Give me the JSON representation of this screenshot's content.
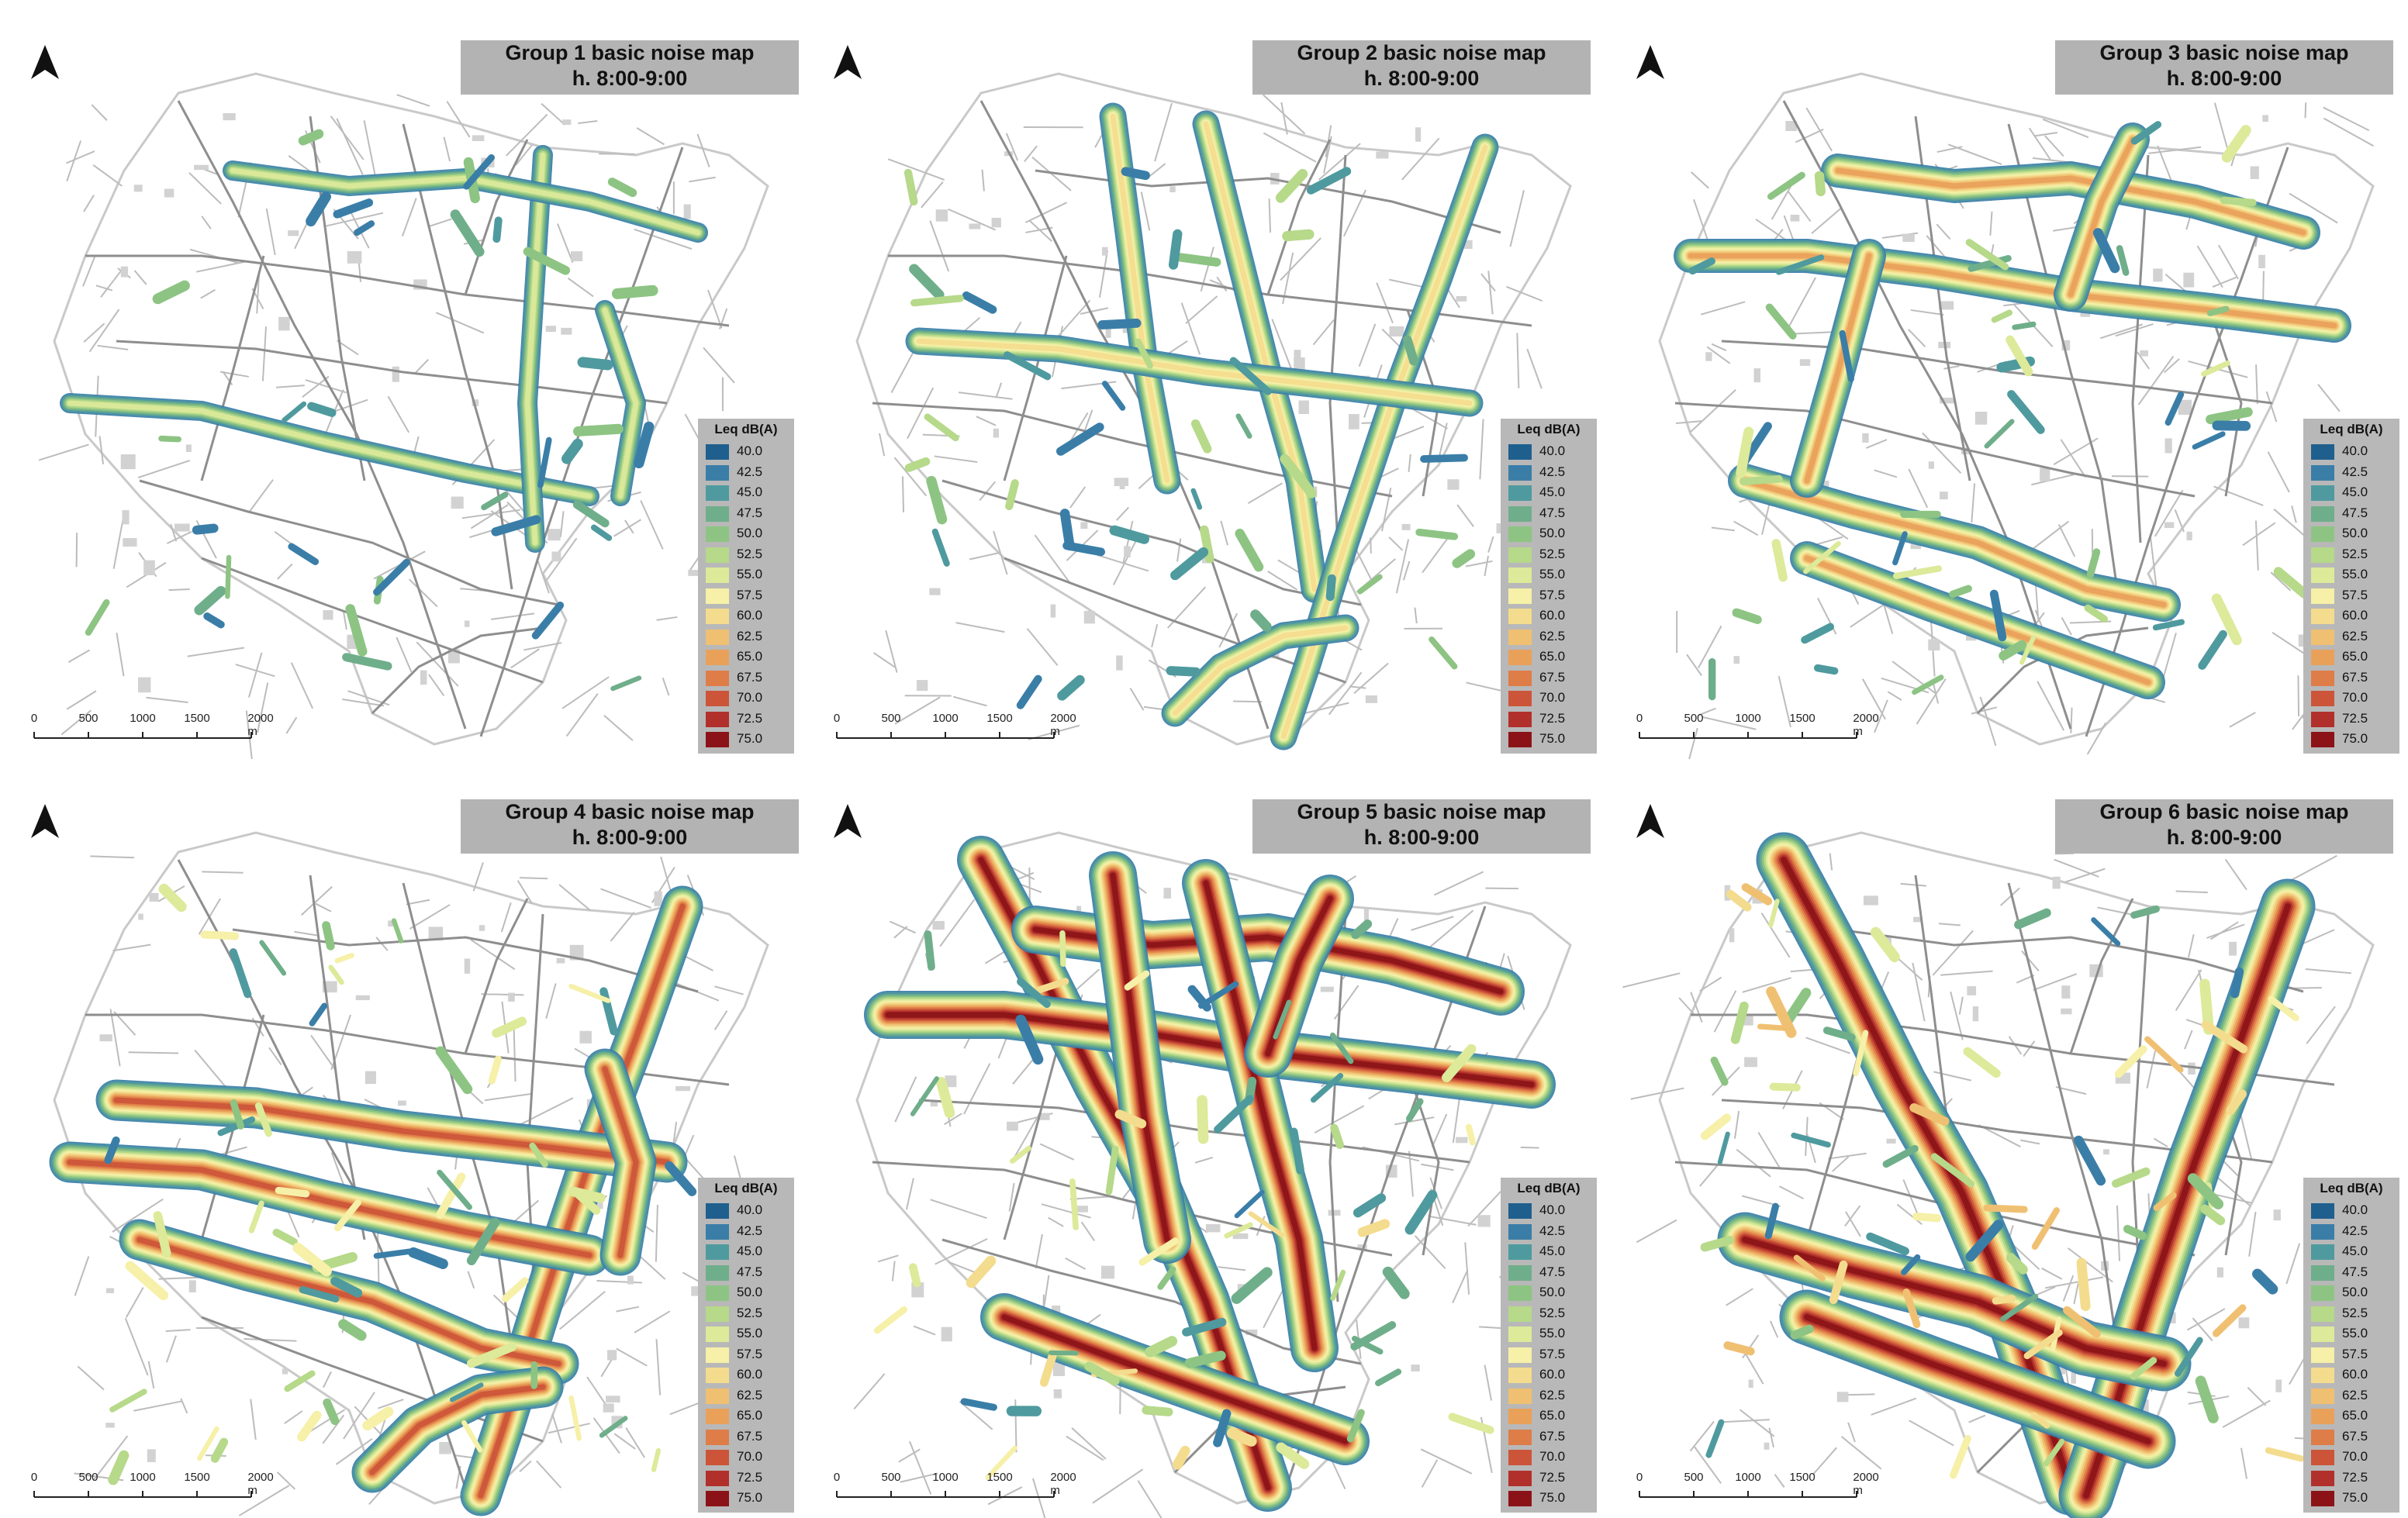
{
  "panels": [
    {
      "title": "Group 1 basic noise map",
      "subtitle": "h. 8:00-9:00",
      "intensity": 1
    },
    {
      "title": "Group 2 basic noise map",
      "subtitle": "h. 8:00-9:00",
      "intensity": 2
    },
    {
      "title": "Group 3 basic noise map",
      "subtitle": "h. 8:00-9:00",
      "intensity": 3
    },
    {
      "title": "Group 4 basic noise map",
      "subtitle": "h. 8:00-9:00",
      "intensity": 4
    },
    {
      "title": "Group 5 basic noise map",
      "subtitle": "h. 8:00-9:00",
      "intensity": 5
    },
    {
      "title": "Group 6 basic noise map",
      "subtitle": "h. 8:00-9:00",
      "intensity": 6
    }
  ],
  "legend": {
    "title": "Leq dB(A)",
    "levels": [
      "40.0",
      "42.5",
      "45.0",
      "47.5",
      "50.0",
      "52.5",
      "55.0",
      "57.5",
      "60.0",
      "62.5",
      "65.0",
      "67.5",
      "70.0",
      "72.5",
      "75.0"
    ],
    "colors": [
      "#1f5f8e",
      "#3a7ea8",
      "#4f9a9e",
      "#6fae8a",
      "#8dc483",
      "#b6d98a",
      "#dcea9a",
      "#f6f0a8",
      "#f4dc8e",
      "#f0c072",
      "#e9a15a",
      "#de7d48",
      "#cc5539",
      "#b1302b",
      "#8b1317"
    ]
  },
  "scale_bar": {
    "ticks": [
      "0",
      "500",
      "1000",
      "1500",
      "2000 m"
    ]
  },
  "icons": {
    "north_arrow": "north-arrow-icon"
  }
}
